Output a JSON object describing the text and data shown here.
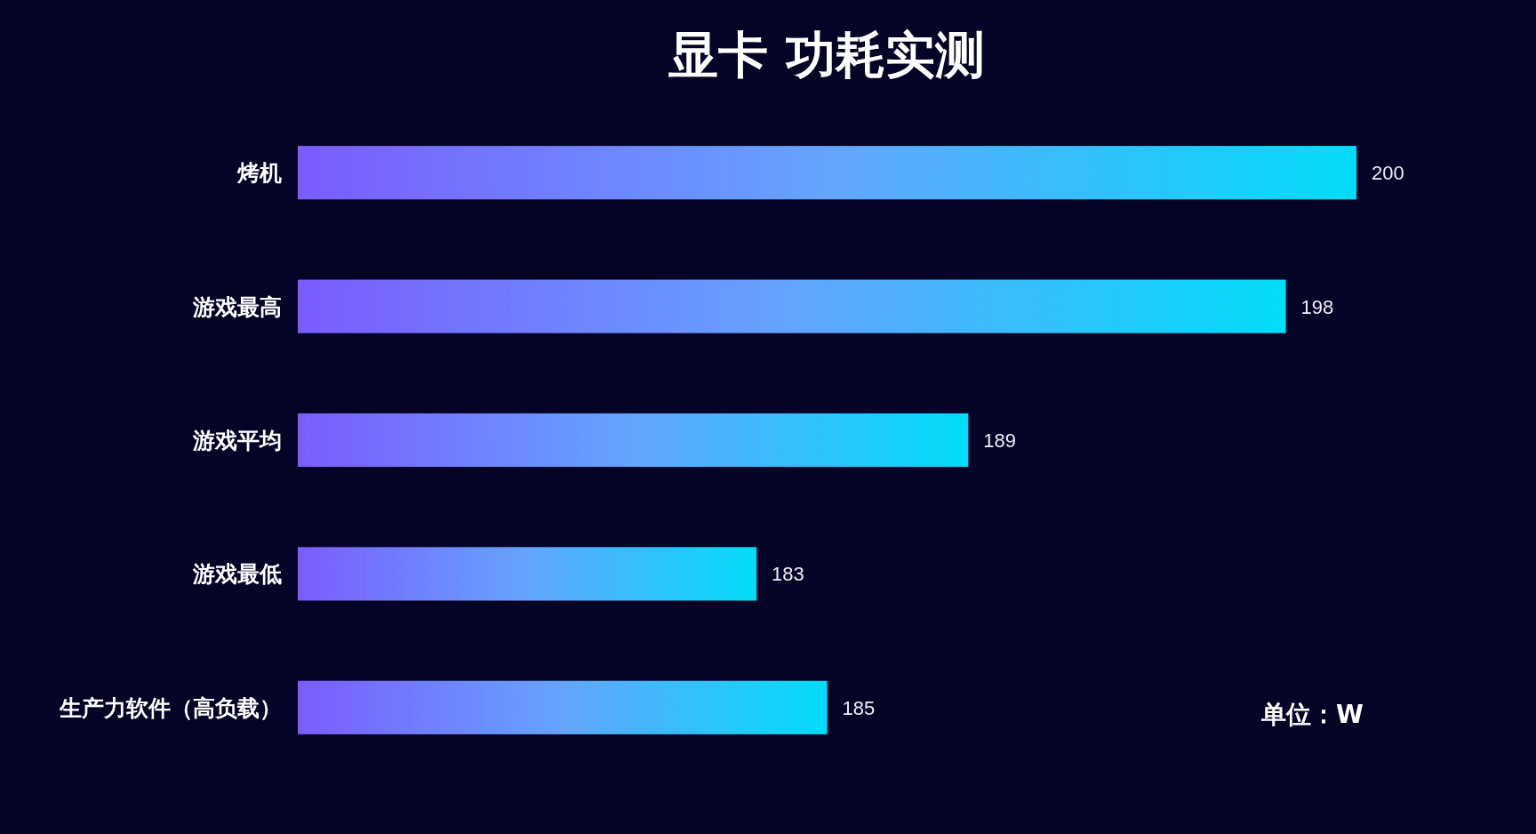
{
  "chart_data": {
    "type": "bar",
    "orientation": "horizontal",
    "title": "显卡 功耗实测",
    "categories": [
      "烤机",
      "游戏最高",
      "游戏平均",
      "游戏最低",
      "生产力软件（高负载）"
    ],
    "series": [
      {
        "color": "#02dcfa",
        "values": [
          200,
          198,
          189,
          183,
          185
        ]
      }
    ],
    "xlim": [
      170,
      200
    ],
    "data_labels": true,
    "tick_labels": "y",
    "annotations": [
      "单位：W"
    ]
  }
}
